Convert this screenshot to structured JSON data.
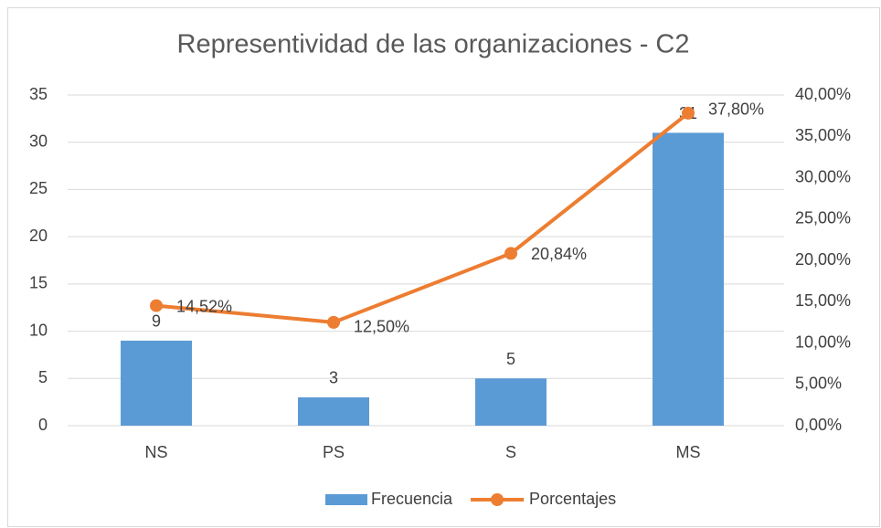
{
  "chart_data": {
    "type": "bar_line",
    "title": "Representividad de las organizaciones - C2",
    "categories": [
      "NS",
      "PS",
      "S",
      "MS"
    ],
    "series": [
      {
        "name": "Frecuencia",
        "type": "bar",
        "color": "#5b9bd5",
        "values": [
          9,
          3,
          5,
          31
        ]
      },
      {
        "name": "Porcentajes",
        "type": "line",
        "axis": "y2",
        "color": "#ed7d31",
        "values": [
          14.52,
          12.5,
          20.84,
          37.8
        ],
        "value_labels": [
          "14,52%",
          "12,50%",
          "20,84%",
          "37,80%"
        ]
      }
    ],
    "ylim": [
      0,
      35
    ],
    "yticks": [
      0,
      5,
      10,
      15,
      20,
      25,
      30,
      35
    ],
    "y2lim": [
      0,
      40
    ],
    "y2ticks": [
      {
        "value": 0,
        "label": "0,00%"
      },
      {
        "value": 5,
        "label": "5,00%"
      },
      {
        "value": 10,
        "label": "10,00%"
      },
      {
        "value": 15,
        "label": "15,00%"
      },
      {
        "value": 20,
        "label": "20,00%"
      },
      {
        "value": 25,
        "label": "25,00%"
      },
      {
        "value": 30,
        "label": "30,00%"
      },
      {
        "value": 35,
        "label": "35,00%"
      },
      {
        "value": 40,
        "label": "40,00%"
      }
    ],
    "grid": true,
    "legend": "bottom"
  }
}
